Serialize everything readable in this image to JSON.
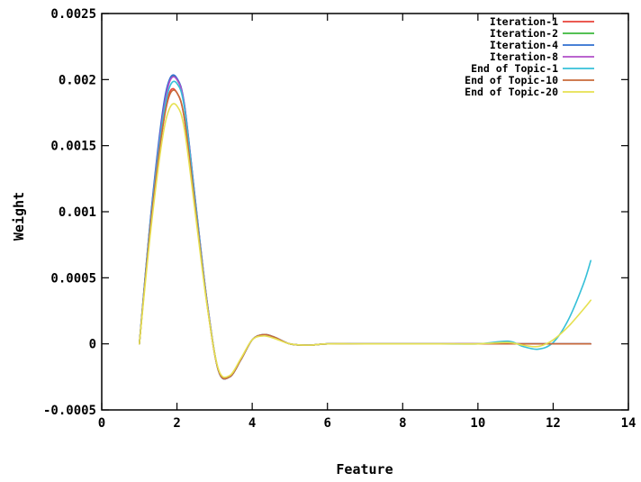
{
  "chart_data": {
    "type": "line",
    "title": "",
    "xlabel": "Feature",
    "ylabel": "Weight",
    "xlim": [
      0,
      14
    ],
    "ylim": [
      -0.0005,
      0.0025
    ],
    "xticks": [
      0,
      2,
      4,
      6,
      8,
      10,
      12,
      14
    ],
    "xtick_labels": [
      "0",
      "2",
      "4",
      "6",
      "8",
      "10",
      "12",
      "14"
    ],
    "yticks": [
      -0.0005,
      0,
      0.0005,
      0.001,
      0.0015,
      0.002,
      0.0025
    ],
    "ytick_labels": [
      "-0.0005",
      "0",
      "0.0005",
      "0.001",
      "0.0015",
      "0.002",
      "0.0025"
    ],
    "grid": false,
    "legend_position": "top-right",
    "series": [
      {
        "name": "Iteration-1",
        "color": "#e8433a",
        "x": [
          1,
          1.3,
          1.6,
          1.8,
          2,
          2.2,
          2.5,
          2.8,
          3.1,
          3.4,
          3.7,
          4.0,
          4.3,
          4.6,
          5.0,
          5.5,
          6,
          7,
          8,
          9,
          10,
          11,
          12,
          13
        ],
        "y": [
          0,
          0.0009,
          0.0016,
          0.0019,
          0.0019,
          0.0017,
          0.001,
          0.0003,
          -0.0002,
          -0.00025,
          -0.00012,
          3e-05,
          7e-05,
          5e-05,
          0.0,
          -1e-05,
          0,
          0,
          0,
          0,
          0,
          0,
          0,
          0
        ]
      },
      {
        "name": "Iteration-2",
        "color": "#3cb83c",
        "x": [
          1,
          1.3,
          1.6,
          1.8,
          2,
          2.2,
          2.5,
          2.8,
          3.1,
          3.4,
          3.7,
          4.0,
          4.3,
          4.6,
          5.0,
          5.5,
          6,
          7,
          8,
          9,
          10,
          11,
          12,
          13
        ],
        "y": [
          0,
          0.00095,
          0.0017,
          0.00199,
          0.002,
          0.0018,
          0.00105,
          0.00032,
          -0.0002,
          -0.00025,
          -0.00012,
          3e-05,
          7e-05,
          5e-05,
          0.0,
          -1e-05,
          0,
          0,
          0,
          0,
          0,
          0,
          0,
          0
        ]
      },
      {
        "name": "Iteration-4",
        "color": "#2f6fd0",
        "x": [
          1,
          1.3,
          1.6,
          1.8,
          2,
          2.2,
          2.5,
          2.8,
          3.1,
          3.4,
          3.7,
          4.0,
          4.3,
          4.6,
          5.0,
          5.5,
          6,
          7,
          8,
          9,
          10,
          11,
          12,
          13
        ],
        "y": [
          0,
          0.00096,
          0.00172,
          0.002,
          0.00201,
          0.00181,
          0.00106,
          0.00032,
          -0.0002,
          -0.00025,
          -0.00012,
          3e-05,
          7e-05,
          5e-05,
          0.0,
          -1e-05,
          0,
          0,
          0,
          0,
          0,
          0,
          0,
          0
        ]
      },
      {
        "name": "Iteration-8",
        "color": "#b04fc8",
        "x": [
          1,
          1.3,
          1.6,
          1.8,
          2,
          2.2,
          2.5,
          2.8,
          3.1,
          3.4,
          3.7,
          4.0,
          4.3,
          4.6,
          5.0,
          5.5,
          6,
          7,
          8,
          9,
          10,
          11,
          12,
          13
        ],
        "y": [
          0,
          0.00094,
          0.00168,
          0.00198,
          0.002,
          0.0018,
          0.00105,
          0.00032,
          -0.0002,
          -0.00025,
          -0.00012,
          3e-05,
          7e-05,
          5e-05,
          0.0,
          -1e-05,
          0,
          0,
          0,
          0,
          0,
          0,
          0,
          0
        ]
      },
      {
        "name": "End of Topic-1",
        "color": "#36c0d8",
        "x": [
          1,
          1.3,
          1.6,
          1.8,
          2,
          2.2,
          2.5,
          2.8,
          3.1,
          3.4,
          3.7,
          4.0,
          4.3,
          4.6,
          5.0,
          5.5,
          6,
          7,
          8,
          9,
          10,
          10.8,
          11.2,
          11.6,
          12.0,
          12.4,
          12.8,
          13
        ],
        "y": [
          0,
          0.00093,
          0.00165,
          0.00194,
          0.00197,
          0.00178,
          0.00104,
          0.00031,
          -0.0002,
          -0.00025,
          -0.00012,
          3e-05,
          7e-05,
          5e-05,
          0.0,
          -1e-05,
          0,
          0,
          0,
          0,
          0,
          2e-05,
          -2e-05,
          -4e-05,
          1e-05,
          0.00018,
          0.00045,
          0.00063
        ]
      },
      {
        "name": "End of Topic-10",
        "color": "#c8693a",
        "x": [
          1,
          1.3,
          1.6,
          1.8,
          2,
          2.2,
          2.5,
          2.8,
          3.1,
          3.4,
          3.7,
          4.0,
          4.3,
          4.6,
          5.0,
          5.5,
          6,
          7,
          8,
          9,
          10,
          11,
          12,
          13
        ],
        "y": [
          0,
          0.0009,
          0.0016,
          0.00188,
          0.0019,
          0.0017,
          0.001,
          0.0003,
          -0.0002,
          -0.00025,
          -0.00012,
          3e-05,
          7e-05,
          5e-05,
          0.0,
          -1e-05,
          0,
          0,
          0,
          0,
          0,
          0,
          0,
          0
        ]
      },
      {
        "name": "End of Topic-20",
        "color": "#e6e050",
        "x": [
          1,
          1.3,
          1.6,
          1.8,
          2,
          2.2,
          2.5,
          2.8,
          3.1,
          3.4,
          3.7,
          4.0,
          4.3,
          4.6,
          5.0,
          5.5,
          6,
          7,
          8,
          9,
          10,
          10.8,
          11.2,
          11.6,
          12.0,
          12.4,
          12.8,
          13
        ],
        "y": [
          0,
          0.00085,
          0.00153,
          0.00178,
          0.0018,
          0.00162,
          0.00096,
          0.00029,
          -0.00019,
          -0.00024,
          -0.00011,
          3e-05,
          6e-05,
          4e-05,
          0.0,
          -1e-05,
          0,
          0,
          0,
          0,
          0,
          1e-05,
          -1e-05,
          -2e-05,
          3e-05,
          0.00013,
          0.00026,
          0.00033
        ]
      }
    ]
  }
}
